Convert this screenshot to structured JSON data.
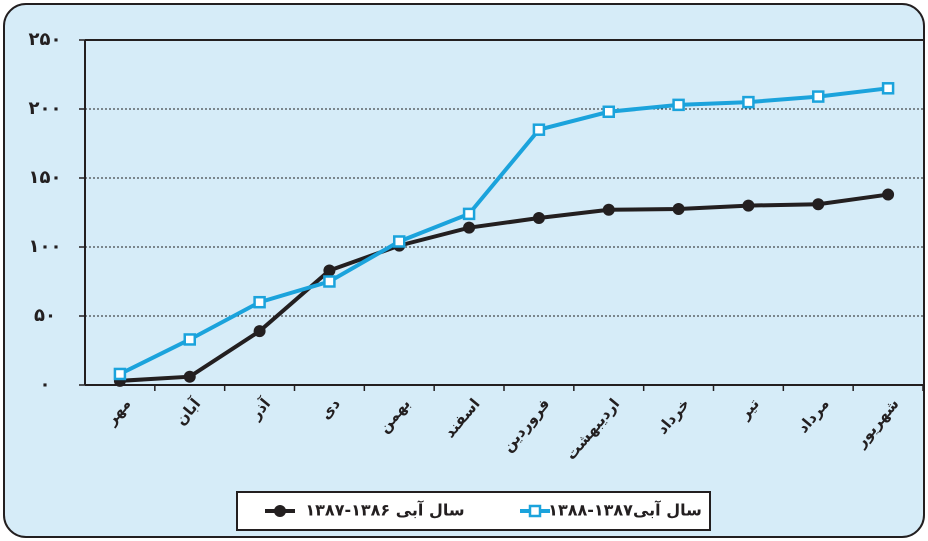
{
  "chart_data": {
    "type": "line",
    "categories": [
      "مهر",
      "آبان",
      "آذر",
      "دی",
      "بهمن",
      "اسفند",
      "فروردین",
      "اردیبهشت",
      "خرداد",
      "تیر",
      "مرداد",
      "شهریور"
    ],
    "series": [
      {
        "name": "سال آبی ۱۳۸۶-۱۳۸۷",
        "color": "#231f20",
        "marker": "circle",
        "values": [
          3,
          6,
          39,
          83,
          101,
          114,
          121,
          127,
          127.5,
          130,
          131,
          138
        ]
      },
      {
        "name": "سال آبی۱۳۸۷-۱۳۸۸",
        "color": "#1ba3dc",
        "marker": "square",
        "values": [
          8,
          33,
          60,
          75,
          104,
          124,
          185,
          198,
          203,
          205,
          209,
          215
        ]
      }
    ],
    "ylim": [
      0,
      250
    ],
    "yticks": [
      {
        "value": 0,
        "label": "۰"
      },
      {
        "value": 50,
        "label": "۵۰"
      },
      {
        "value": 100,
        "label": "۱۰۰"
      },
      {
        "value": 150,
        "label": "۱۵۰"
      },
      {
        "value": 200,
        "label": "۲۰۰"
      },
      {
        "value": 250,
        "label": "۲۵۰"
      }
    ],
    "grid": true,
    "legend": "bottom"
  }
}
